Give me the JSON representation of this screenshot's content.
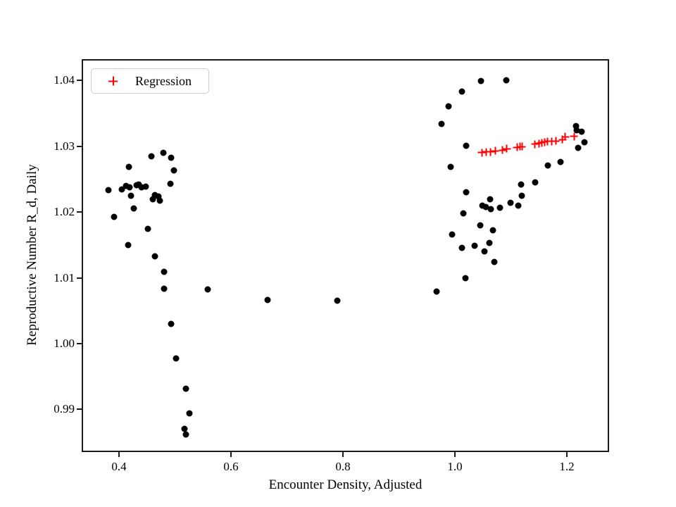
{
  "figure": {
    "background": "#ffffff"
  },
  "legend": {
    "label": "Regression",
    "marker_icon": "plus-icon",
    "marker_color": "#ff0000"
  },
  "chart_data": {
    "type": "scatter",
    "title": "",
    "xlabel": "Encounter Density, Adjusted",
    "ylabel": "Reproductive Number R_d, Daily",
    "xlim": [
      0.3359,
      1.273
    ],
    "ylim": [
      0.98374,
      1.043
    ],
    "grid": false,
    "legend_position": "upper-left",
    "xticks": {
      "values": [
        0.4,
        0.6,
        0.8,
        1.0,
        1.2
      ],
      "labels": [
        "0.4",
        "0.6",
        "0.8",
        "1.0",
        "1.2"
      ]
    },
    "yticks": {
      "values": [
        0.99,
        1.0,
        1.01,
        1.02,
        1.03,
        1.04
      ],
      "labels": [
        "0.99",
        "1.00",
        "1.01",
        "1.02",
        "1.03",
        "1.04"
      ]
    },
    "series": [
      {
        "name": "scatter-points",
        "marker": "circle",
        "color": "#000000",
        "size": 9,
        "points": [
          [
            0.381,
            1.0233
          ],
          [
            0.391,
            1.0193
          ],
          [
            0.405,
            1.0234
          ],
          [
            0.413,
            1.024
          ],
          [
            0.416,
            1.015
          ],
          [
            0.418,
            1.0268
          ],
          [
            0.419,
            1.0237
          ],
          [
            0.422,
            1.0225
          ],
          [
            0.426,
            1.0205
          ],
          [
            0.431,
            1.0241
          ],
          [
            0.435,
            1.0242
          ],
          [
            0.44,
            1.0237
          ],
          [
            0.448,
            1.0238
          ],
          [
            0.451,
            1.0174
          ],
          [
            0.458,
            1.0284
          ],
          [
            0.461,
            1.0219
          ],
          [
            0.464,
            1.0226
          ],
          [
            0.464,
            1.0133
          ],
          [
            0.47,
            1.0224
          ],
          [
            0.473,
            1.0217
          ],
          [
            0.479,
            1.029
          ],
          [
            0.48,
            1.0109
          ],
          [
            0.481,
            1.0083
          ],
          [
            0.492,
            1.0243
          ],
          [
            0.493,
            1.0282
          ],
          [
            0.493,
            1.003
          ],
          [
            0.498,
            1.0263
          ],
          [
            0.502,
            0.9977
          ],
          [
            0.517,
            0.9871
          ],
          [
            0.519,
            0.9862
          ],
          [
            0.52,
            0.9931
          ],
          [
            0.526,
            0.9894
          ],
          [
            0.559,
            1.0082
          ],
          [
            0.665,
            1.0066
          ],
          [
            0.79,
            1.0065
          ],
          [
            0.967,
            1.0079
          ],
          [
            0.976,
            1.0334
          ],
          [
            0.989,
            1.0361
          ],
          [
            0.993,
            1.0269
          ],
          [
            0.995,
            1.0166
          ],
          [
            1.013,
            1.0383
          ],
          [
            1.013,
            1.0146
          ],
          [
            1.015,
            1.0198
          ],
          [
            1.019,
            1.0099
          ],
          [
            1.02,
            1.0301
          ],
          [
            1.02,
            1.023
          ],
          [
            1.035,
            1.0149
          ],
          [
            1.045,
            1.018
          ],
          [
            1.046,
            1.0399
          ],
          [
            1.049,
            1.021
          ],
          [
            1.053,
            1.014
          ],
          [
            1.055,
            1.0207
          ],
          [
            1.062,
            1.0153
          ],
          [
            1.063,
            1.0219
          ],
          [
            1.064,
            1.0204
          ],
          [
            1.068,
            1.0172
          ],
          [
            1.07,
            1.0124
          ],
          [
            1.081,
            1.0206
          ],
          [
            1.092,
            1.04
          ],
          [
            1.099,
            1.0214
          ],
          [
            1.113,
            1.021
          ],
          [
            1.118,
            1.0242
          ],
          [
            1.119,
            1.0225
          ],
          [
            1.144,
            1.0245
          ],
          [
            1.166,
            1.0271
          ],
          [
            1.189,
            1.0276
          ],
          [
            1.216,
            1.0331
          ],
          [
            1.218,
            1.0324
          ],
          [
            1.22,
            1.0297
          ],
          [
            1.227,
            1.0322
          ],
          [
            1.231,
            1.0306
          ]
        ]
      },
      {
        "name": "Regression",
        "marker": "plus",
        "color": "#ff0000",
        "size": 11,
        "points": [
          [
            1.048,
            1.029
          ],
          [
            1.056,
            1.0291
          ],
          [
            1.064,
            1.0291
          ],
          [
            1.072,
            1.0293
          ],
          [
            1.085,
            1.0294
          ],
          [
            1.093,
            1.0296
          ],
          [
            1.111,
            1.0298
          ],
          [
            1.117,
            1.0299
          ],
          [
            1.12,
            1.0299
          ],
          [
            1.143,
            1.0303
          ],
          [
            1.15,
            1.0304
          ],
          [
            1.155,
            1.0305
          ],
          [
            1.16,
            1.0306
          ],
          [
            1.166,
            1.0307
          ],
          [
            1.173,
            1.0307
          ],
          [
            1.18,
            1.0308
          ],
          [
            1.192,
            1.031
          ],
          [
            1.197,
            1.0314
          ],
          [
            1.213,
            1.0315
          ]
        ]
      }
    ]
  }
}
